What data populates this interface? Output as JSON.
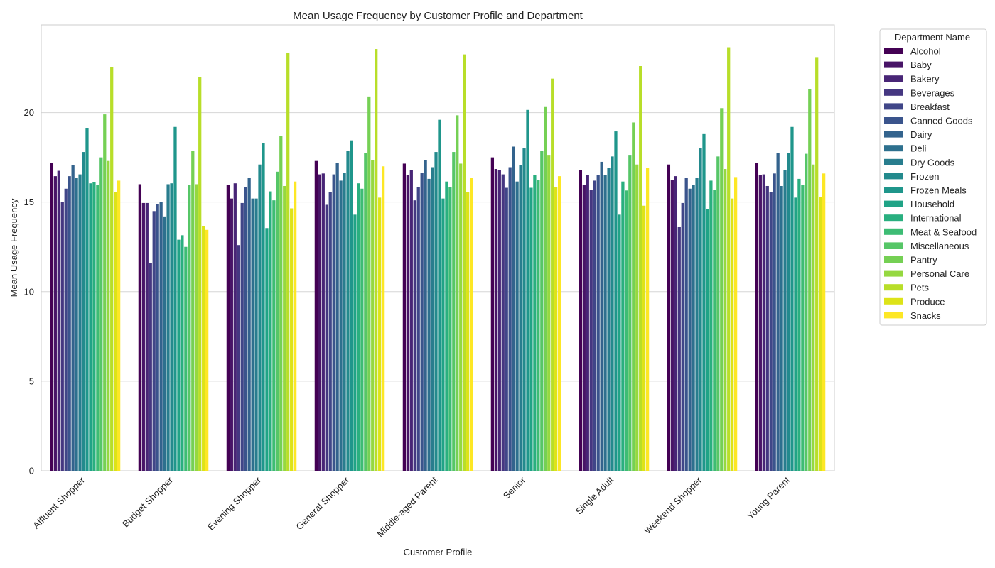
{
  "chart_data": {
    "type": "bar",
    "title": "Mean Usage Frequency by Customer Profile and Department",
    "xlabel": "Customer Profile",
    "ylabel": "Mean Usage Frequency",
    "ylim": [
      0,
      24.9
    ],
    "yticks": [
      0,
      5,
      10,
      15,
      20
    ],
    "grid": "horizontal",
    "legend": {
      "title": "Department Name",
      "placement": "outside-right"
    },
    "categories": [
      "Affluent Shopper",
      "Budget Shopper",
      "Evening Shopper",
      "General Shopper",
      "Middle-aged Parent",
      "Senior",
      "Single Adult",
      "Weekend Shopper",
      "Young Parent"
    ],
    "series": [
      {
        "name": "Alcohol",
        "color": "#440154",
        "values": [
          17.2,
          16.0,
          15.95,
          17.3,
          17.15,
          17.5,
          16.8,
          17.1,
          17.2
        ]
      },
      {
        "name": "Baby",
        "color": "#481467",
        "values": [
          16.45,
          14.95,
          15.2,
          16.55,
          16.5,
          16.85,
          15.95,
          16.25,
          16.5
        ]
      },
      {
        "name": "Bakery",
        "color": "#482576",
        "values": [
          16.75,
          14.95,
          16.05,
          16.6,
          16.8,
          16.8,
          16.5,
          16.45,
          16.55
        ]
      },
      {
        "name": "Beverages",
        "color": "#453781",
        "values": [
          15.0,
          11.6,
          12.6,
          14.85,
          15.1,
          16.55,
          15.7,
          13.6,
          15.9
        ]
      },
      {
        "name": "Breakfast",
        "color": "#404688",
        "values": [
          15.75,
          14.5,
          14.95,
          15.55,
          15.85,
          15.8,
          16.2,
          14.95,
          15.55
        ]
      },
      {
        "name": "Canned Goods",
        "color": "#3a548c",
        "values": [
          16.45,
          14.9,
          15.85,
          16.55,
          16.65,
          16.95,
          16.5,
          16.35,
          16.6
        ]
      },
      {
        "name": "Dairy",
        "color": "#33638d",
        "values": [
          17.05,
          15.0,
          16.35,
          17.2,
          17.35,
          18.1,
          17.25,
          15.75,
          17.75
        ]
      },
      {
        "name": "Deli",
        "color": "#2d708e",
        "values": [
          16.35,
          14.2,
          15.2,
          16.2,
          16.3,
          16.15,
          16.5,
          15.95,
          15.9
        ]
      },
      {
        "name": "Dry Goods",
        "color": "#287d8e",
        "values": [
          16.55,
          16.0,
          15.2,
          16.65,
          16.95,
          17.05,
          16.9,
          16.35,
          16.8
        ]
      },
      {
        "name": "Frozen",
        "color": "#238a8d",
        "values": [
          17.8,
          16.05,
          17.1,
          17.85,
          17.8,
          18.0,
          17.55,
          18.0,
          17.75
        ]
      },
      {
        "name": "Frozen Meals",
        "color": "#1f968b",
        "values": [
          19.15,
          19.2,
          18.3,
          18.45,
          19.6,
          20.15,
          18.95,
          18.8,
          19.2
        ]
      },
      {
        "name": "Household",
        "color": "#20a386",
        "values": [
          16.05,
          12.9,
          13.55,
          14.3,
          15.2,
          15.8,
          14.3,
          14.6,
          15.25
        ]
      },
      {
        "name": "International",
        "color": "#29af7f",
        "values": [
          16.1,
          13.15,
          15.6,
          16.05,
          16.15,
          16.5,
          16.15,
          16.2,
          16.3
        ]
      },
      {
        "name": "Meat & Seafood",
        "color": "#3dbc74",
        "values": [
          15.95,
          12.5,
          15.1,
          15.75,
          15.85,
          16.25,
          15.65,
          15.7,
          15.95
        ]
      },
      {
        "name": "Miscellaneous",
        "color": "#56c667",
        "values": [
          17.5,
          15.95,
          16.7,
          17.75,
          17.8,
          17.85,
          17.6,
          17.55,
          17.7
        ]
      },
      {
        "name": "Pantry",
        "color": "#75d054",
        "values": [
          19.9,
          17.85,
          18.7,
          20.9,
          19.85,
          20.35,
          19.45,
          20.25,
          21.3
        ]
      },
      {
        "name": "Personal Care",
        "color": "#95d840",
        "values": [
          17.3,
          16.0,
          15.9,
          17.35,
          17.15,
          17.6,
          17.1,
          16.85,
          17.1
        ]
      },
      {
        "name": "Pets",
        "color": "#b8de29",
        "values": [
          22.55,
          22.0,
          23.35,
          23.55,
          23.25,
          21.9,
          22.6,
          23.65,
          23.1
        ]
      },
      {
        "name": "Produce",
        "color": "#dde318",
        "values": [
          15.55,
          13.65,
          14.65,
          15.25,
          15.55,
          15.85,
          14.8,
          15.2,
          15.3
        ]
      },
      {
        "name": "Snacks",
        "color": "#fde725",
        "values": [
          16.2,
          13.45,
          16.15,
          17.0,
          16.35,
          16.45,
          16.9,
          16.4,
          16.6
        ]
      }
    ]
  }
}
